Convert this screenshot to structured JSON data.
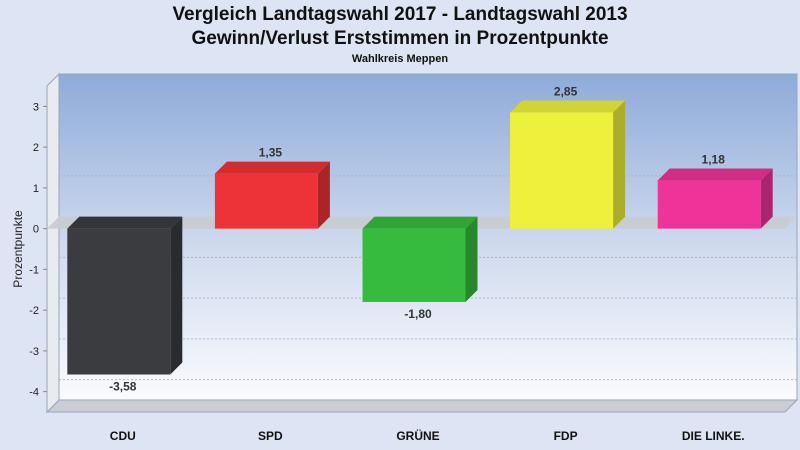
{
  "chart_data": {
    "type": "bar",
    "title": "Vergleich Landtagswahl 2017 - Landtagswahl 2013",
    "subtitle": "Gewinn/Verlust Erststimmen in Prozentpunkte",
    "subsubtitle": "Wahlkreis Meppen",
    "ylabel": "Prozentpunkte",
    "xlabel": "",
    "categories": [
      "CDU",
      "SPD",
      "GRÜNE",
      "FDP",
      "DIE LINKE."
    ],
    "values": [
      -3.58,
      1.35,
      -1.8,
      2.85,
      1.18
    ],
    "value_labels": [
      "-3,58",
      "1,35",
      "-1,80",
      "2,85",
      "1,18"
    ],
    "colors": [
      "#3a3c40",
      "#ee3338",
      "#36bb3e",
      "#eef13c",
      "#ee3399"
    ],
    "ylim": [
      -4.5,
      3.5
    ],
    "yticks": [
      -4,
      -3,
      -2,
      -1,
      0,
      1,
      2,
      3
    ],
    "grid": true,
    "legend": "none"
  }
}
